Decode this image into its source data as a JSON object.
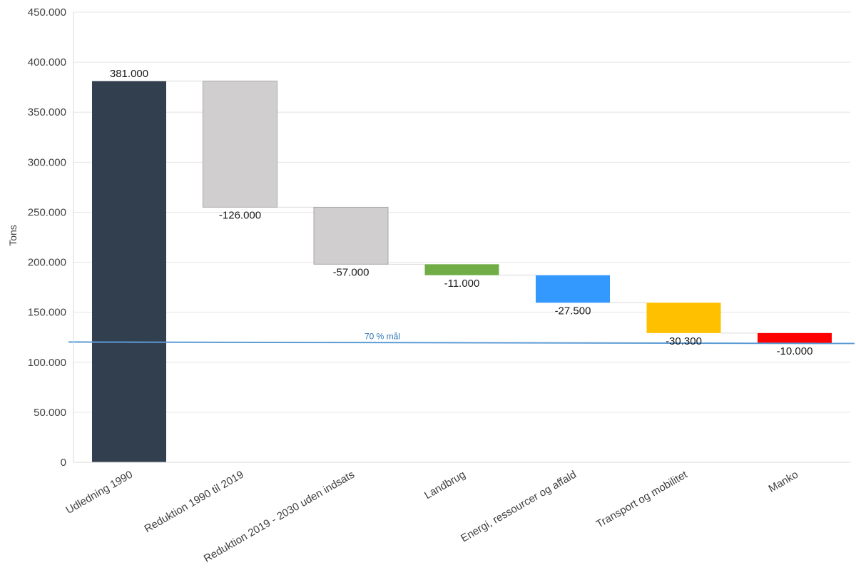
{
  "chart_data": {
    "type": "waterfall",
    "ylabel": "Tons",
    "xlabel": "",
    "ylim": [
      0,
      450000
    ],
    "yticks": [
      0,
      50000,
      100000,
      150000,
      200000,
      250000,
      300000,
      350000,
      400000,
      450000
    ],
    "ytick_labels": [
      "0",
      "50.000",
      "100.000",
      "150.000",
      "200.000",
      "250.000",
      "300.000",
      "350.000",
      "400.000",
      "450.000"
    ],
    "grid": true,
    "categories": [
      "Udledning 1990",
      "Reduktion 1990 til 2019",
      "Reduktion 2019 - 2030 uden indsats",
      "Landbrug",
      "Energi, ressourcer og affald",
      "Transport og mobilitet",
      "Manko"
    ],
    "values": [
      381000,
      -126000,
      -57000,
      -11000,
      -27500,
      -30300,
      -10000
    ],
    "value_labels": [
      "381.000",
      "-126.000",
      "-57.000",
      "-11.000",
      "-27.500",
      "-30.300",
      "-10.000"
    ],
    "bar_kinds": [
      "total",
      "delta",
      "delta",
      "delta",
      "delta",
      "delta",
      "delta"
    ],
    "colors": [
      "#323f4f",
      "#d0cece",
      "#d0cece",
      "#70ad47",
      "#3399ff",
      "#ffc000",
      "#ff0000"
    ],
    "reference_line": {
      "label": "70 % mål",
      "value": 119500,
      "color": "#5b9bd5"
    }
  }
}
